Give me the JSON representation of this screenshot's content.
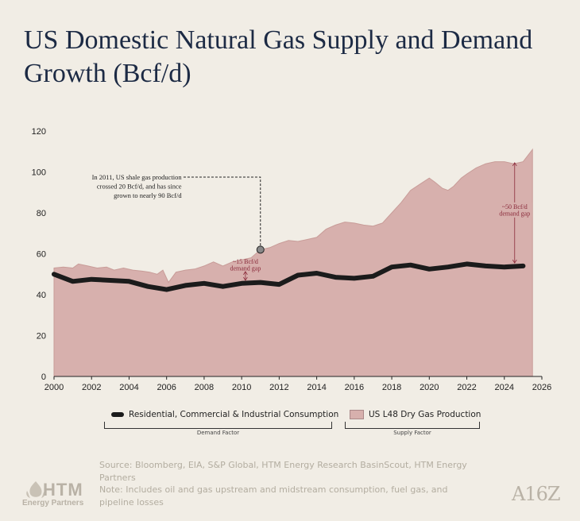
{
  "title": "US Domestic Natural Gas Supply and Demand Growth (Bcf/d)",
  "chart_data": {
    "type": "area",
    "title": "US Domestic Natural Gas Supply and Demand Growth (Bcf/d)",
    "xlim": [
      2000,
      2026
    ],
    "ylim": [
      0,
      120
    ],
    "x_ticks": [
      "2000",
      "2002",
      "2004",
      "2006",
      "2008",
      "2010",
      "2012",
      "2014",
      "2016",
      "2018",
      "2020",
      "2022",
      "2024",
      "2026"
    ],
    "y_ticks": [
      "0",
      "20",
      "40",
      "60",
      "80",
      "100",
      "120"
    ],
    "grid": false,
    "series": [
      {
        "name": "US L48 Dry Gas Production",
        "kind": "area",
        "color": "#d7b0ad",
        "x": [
          2000,
          2000.5,
          2001,
          2001.3,
          2001.8,
          2002.3,
          2002.8,
          2003.2,
          2003.7,
          2004.2,
          2004.7,
          2005.1,
          2005.5,
          2005.8,
          2006.1,
          2006.5,
          2007,
          2007.5,
          2008,
          2008.5,
          2009,
          2009.5,
          2010,
          2010.5,
          2011,
          2011.5,
          2012,
          2012.5,
          2013,
          2013.5,
          2014,
          2014.5,
          2015,
          2015.5,
          2016,
          2016.5,
          2017,
          2017.5,
          2018,
          2018.5,
          2019,
          2019.5,
          2020,
          2020.3,
          2020.7,
          2021,
          2021.3,
          2021.7,
          2022,
          2022.5,
          2023,
          2023.5,
          2024,
          2024.5,
          2025,
          2025.5
        ],
        "values": [
          53,
          53.5,
          53,
          55,
          54,
          53,
          53.5,
          52,
          53,
          52,
          51.5,
          51,
          50,
          52,
          46,
          51,
          52,
          52.5,
          54,
          56,
          54,
          56,
          57,
          58,
          62,
          63,
          65,
          66.5,
          66,
          67,
          68,
          72,
          74,
          75.5,
          75,
          74,
          73.5,
          75,
          80,
          85,
          91,
          94,
          97,
          95,
          92,
          91,
          93,
          97,
          99,
          102,
          104,
          105,
          105,
          104,
          105,
          111
        ]
      },
      {
        "name": "Residential, Commercial & Industrial Consumption",
        "kind": "line",
        "color": "#1b1b1b",
        "x": [
          2000,
          2001,
          2002,
          2003,
          2004,
          2005,
          2006,
          2007,
          2008,
          2009,
          2010,
          2011,
          2012,
          2013,
          2014,
          2015,
          2016,
          2017,
          2018,
          2019,
          2020,
          2021,
          2022,
          2023,
          2024,
          2025
        ],
        "values": [
          50,
          46.5,
          47.5,
          47,
          46.5,
          44,
          42.5,
          44.5,
          45.5,
          44,
          45.5,
          46,
          45,
          49.5,
          50.5,
          48.5,
          48,
          49,
          53.5,
          54.5,
          52.5,
          53.5,
          55,
          54,
          53.5,
          54
        ]
      }
    ],
    "annotations": {
      "callout_2011": [
        "In 2011, US shale gas production",
        "crossed 20 Bcf/d, and has since",
        "grown to nearly 90 Bcf/d"
      ],
      "gap_2010": [
        "~15 Bcf/d",
        "demand gap"
      ],
      "gap_2024": [
        "~50 Bcf/d",
        "demand gap"
      ]
    },
    "legend_placement": "bottom"
  },
  "legend": {
    "demand_label": "Residential, Commercial & Industrial Consumption",
    "supply_label": "US L48 Dry Gas Production",
    "demand_group": "Demand Factor",
    "supply_group": "Supply Factor"
  },
  "footer": {
    "source": "Source: Bloomberg, EIA, S&P Global, HTM Energy Research BasinScout, HTM Energy Partners",
    "note": "Note: Includes oil and gas upstream and midstream consumption, fuel gas, and pipeline losses"
  },
  "logos": {
    "left_main": "HTM",
    "left_sub": "Energy Partners",
    "right": "A16Z"
  },
  "colors": {
    "background": "#f1ede5",
    "title": "#1c2a44",
    "area_fill": "#d7b0ad",
    "area_stroke": "#c89c98",
    "demand_line": "#1b1b1b",
    "gap_arrow": "#8a2a3a"
  }
}
